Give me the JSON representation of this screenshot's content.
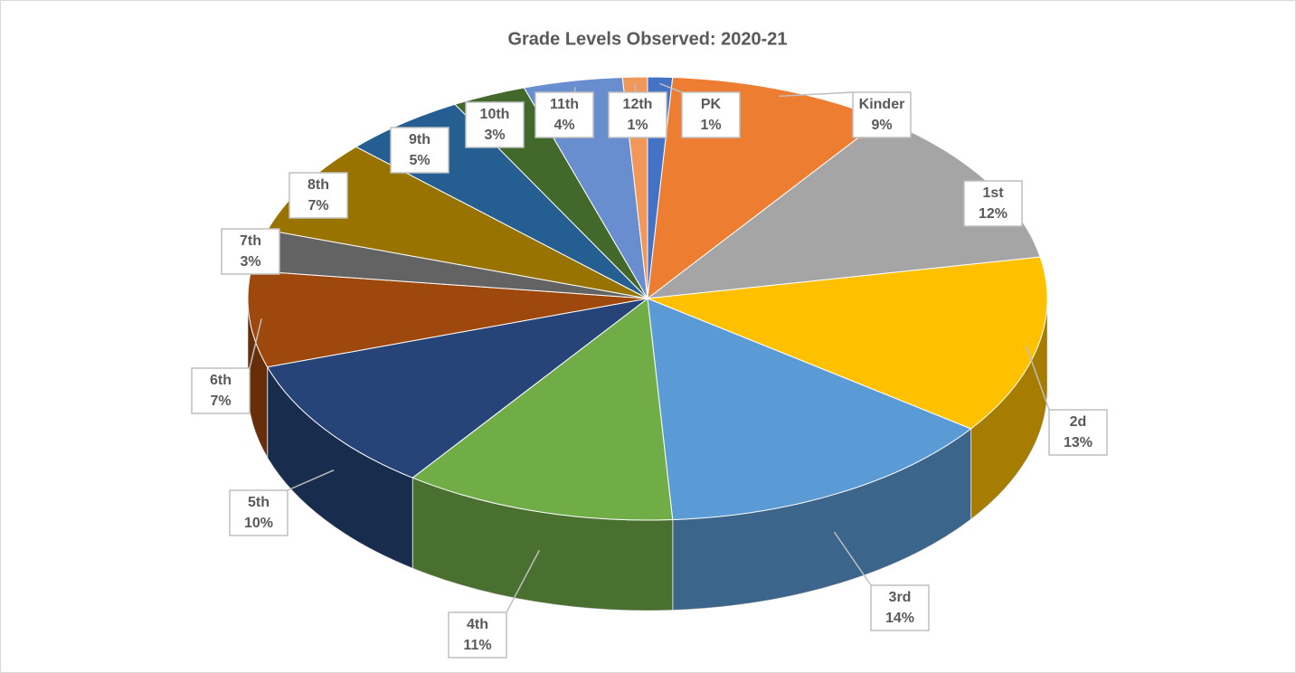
{
  "chart_data": {
    "type": "pie",
    "title": "Grade Levels Observed: 2020-21",
    "categories": [
      "PK",
      "Kinder",
      "1st",
      "2d",
      "3rd",
      "4th",
      "5th",
      "6th",
      "7th",
      "8th",
      "9th",
      "10th",
      "11th",
      "12th"
    ],
    "values": [
      1,
      9,
      12,
      13,
      14,
      11,
      10,
      7,
      3,
      7,
      5,
      3,
      4,
      1
    ],
    "value_labels": [
      "1%",
      "9%",
      "12%",
      "13%",
      "14%",
      "11%",
      "10%",
      "7%",
      "3%",
      "7%",
      "5%",
      "3%",
      "4%",
      "1%"
    ],
    "colors": [
      "#4472c4",
      "#ed7d31",
      "#a5a5a5",
      "#ffc000",
      "#5b9bd5",
      "#70ad47",
      "#264478",
      "#9e480e",
      "#636363",
      "#997300",
      "#255e91",
      "#43682b",
      "#698ed0",
      "#f1975a"
    ]
  }
}
